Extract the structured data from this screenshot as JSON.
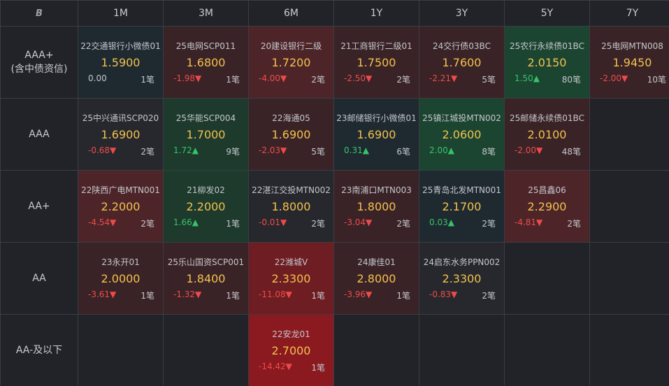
{
  "logo": "B",
  "columns": [
    "1M",
    "3M",
    "6M",
    "1Y",
    "3Y",
    "5Y",
    "7Y"
  ],
  "rows": [
    {
      "label": "AAA+",
      "sublabel": "(含中债资信)"
    },
    {
      "label": "AAA",
      "sublabel": ""
    },
    {
      "label": "AA+",
      "sublabel": ""
    },
    {
      "label": "AA",
      "sublabel": ""
    },
    {
      "label": "AA-及以下",
      "sublabel": ""
    }
  ],
  "cells": [
    [
      {
        "name": "22交通银行小微债01",
        "price": "1.5900",
        "change": "0.00",
        "dir": "flat",
        "count": "1笔",
        "tone": "neutral"
      },
      {
        "name": "25电网SCP011",
        "price": "1.6800",
        "change": "-1.98▼",
        "dir": "down",
        "count": "1笔",
        "tone": "red1"
      },
      {
        "name": "20建设银行二级",
        "price": "1.7200",
        "change": "-4.00▼",
        "dir": "down",
        "count": "2笔",
        "tone": "red2"
      },
      {
        "name": "21工商银行二级01",
        "price": "1.7500",
        "change": "-2.50▼",
        "dir": "down",
        "count": "2笔",
        "tone": "red1"
      },
      {
        "name": "24交行债03BC",
        "price": "1.7600",
        "change": "-2.21▼",
        "dir": "down",
        "count": "5笔",
        "tone": "red1"
      },
      {
        "name": "25农行永续债01BC",
        "price": "2.0150",
        "change": "1.50▲",
        "dir": "up",
        "count": "80笔",
        "tone": "green2"
      },
      {
        "name": "25电网MTN008",
        "price": "1.9450",
        "change": "-2.00▼",
        "dir": "down",
        "count": "10笔",
        "tone": "red1"
      }
    ],
    [
      {
        "name": "25中兴通讯SCP020",
        "price": "1.6900",
        "change": "-0.68▼",
        "dir": "down",
        "count": "2笔",
        "tone": "dark"
      },
      {
        "name": "25华能SCP004",
        "price": "1.7000",
        "change": "1.72▲",
        "dir": "up",
        "count": "9笔",
        "tone": "green1"
      },
      {
        "name": "22海通05",
        "price": "1.6900",
        "change": "-2.03▼",
        "dir": "down",
        "count": "5笔",
        "tone": "red1"
      },
      {
        "name": "23邮储银行小微债01",
        "price": "1.6900",
        "change": "0.31▲",
        "dir": "up",
        "count": "6笔",
        "tone": "neutral"
      },
      {
        "name": "25镇江城投MTN002",
        "price": "2.0600",
        "change": "2.00▲",
        "dir": "up",
        "count": "8笔",
        "tone": "green2"
      },
      {
        "name": "25邮储永续债01BC",
        "price": "2.0100",
        "change": "-2.00▼",
        "dir": "down",
        "count": "48笔",
        "tone": "red1"
      },
      null
    ],
    [
      {
        "name": "22陕西广电MTN001",
        "price": "2.2000",
        "change": "-4.54▼",
        "dir": "down",
        "count": "2笔",
        "tone": "red2"
      },
      {
        "name": "21柳发02",
        "price": "2.2000",
        "change": "1.66▲",
        "dir": "up",
        "count": "1笔",
        "tone": "green1"
      },
      {
        "name": "22湛江交投MTN002",
        "price": "1.8000",
        "change": "-0.01▼",
        "dir": "down",
        "count": "2笔",
        "tone": "dark"
      },
      {
        "name": "23南浦口MTN003",
        "price": "1.8000",
        "change": "-3.04▼",
        "dir": "down",
        "count": "2笔",
        "tone": "red1"
      },
      {
        "name": "25青岛北发MTN001",
        "price": "2.1700",
        "change": "0.03▲",
        "dir": "up",
        "count": "2笔",
        "tone": "neutral"
      },
      {
        "name": "25昌鑫06",
        "price": "2.2900",
        "change": "-4.81▼",
        "dir": "down",
        "count": "2笔",
        "tone": "red2"
      },
      null
    ],
    [
      {
        "name": "23永开01",
        "price": "2.0000",
        "change": "-3.61▼",
        "dir": "down",
        "count": "1笔",
        "tone": "red1"
      },
      {
        "name": "25乐山国资SCP001",
        "price": "1.8400",
        "change": "-1.32▼",
        "dir": "down",
        "count": "1笔",
        "tone": "red1"
      },
      {
        "name": "22潍城V",
        "price": "2.3300",
        "change": "-11.08▼",
        "dir": "down",
        "count": "1笔",
        "tone": "red3"
      },
      {
        "name": "24康佳01",
        "price": "2.8000",
        "change": "-3.96▼",
        "dir": "down",
        "count": "1笔",
        "tone": "red1"
      },
      {
        "name": "24启东水务PPN002",
        "price": "2.3300",
        "change": "-0.83▼",
        "dir": "down",
        "count": "2笔",
        "tone": "dark"
      },
      null,
      null
    ],
    [
      null,
      null,
      {
        "name": "22安龙01",
        "price": "2.7000",
        "change": "-14.42▼",
        "dir": "down",
        "count": "1笔",
        "tone": "red4"
      },
      null,
      null,
      null,
      null
    ]
  ]
}
